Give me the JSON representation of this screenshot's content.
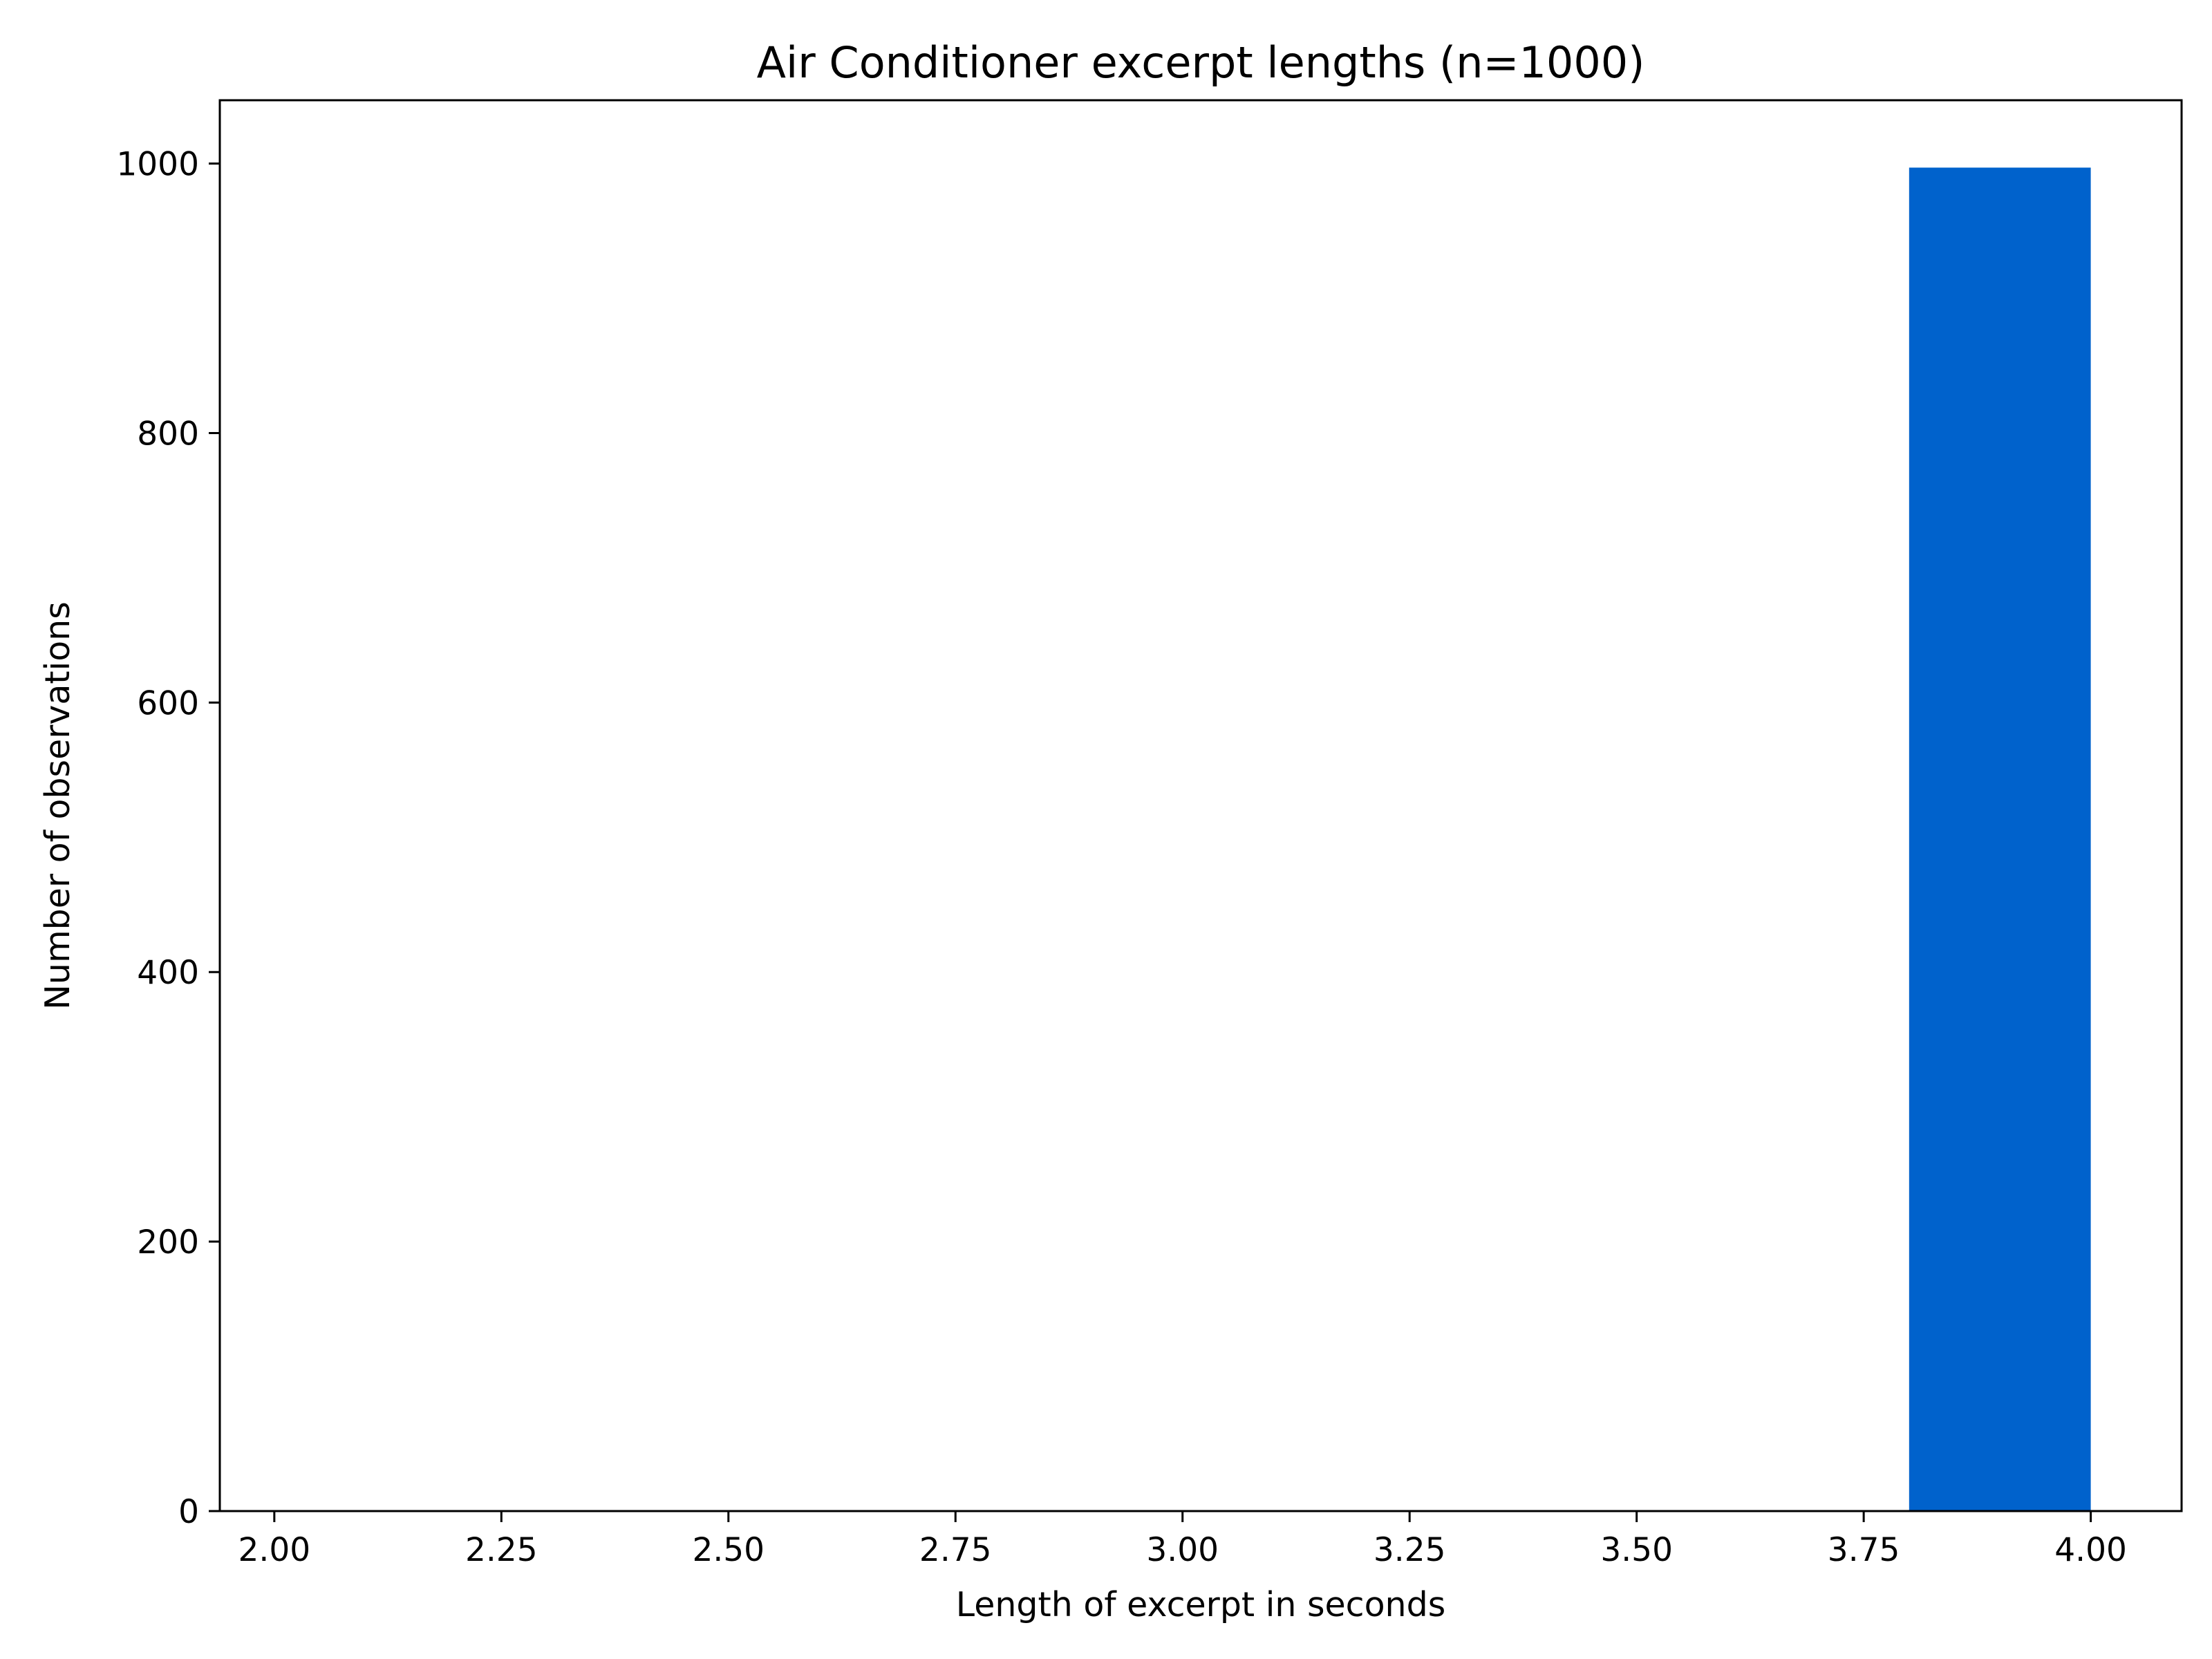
{
  "chart_data": {
    "type": "bar",
    "title": "Air Conditioner excerpt lengths (n=1000)",
    "xlabel": "Length of excerpt in seconds",
    "ylabel": "Number of observations",
    "xlim": [
      1.94,
      4.1
    ],
    "ylim": [
      0,
      1047
    ],
    "x_ticks": [
      2.0,
      2.25,
      2.5,
      2.75,
      3.0,
      3.25,
      3.5,
      3.75,
      4.0
    ],
    "x_tick_labels": [
      "2.00",
      "2.25",
      "2.50",
      "2.75",
      "3.00",
      "3.25",
      "3.50",
      "3.75",
      "4.00"
    ],
    "y_ticks": [
      0,
      200,
      400,
      600,
      800,
      1000
    ],
    "y_tick_labels": [
      "0",
      "200",
      "400",
      "600",
      "800",
      "1000"
    ],
    "bins": [
      {
        "start": 3.8,
        "end": 4.0,
        "count": 997
      }
    ],
    "bar_color": "#0062cc",
    "grid": false,
    "legend": "none"
  }
}
